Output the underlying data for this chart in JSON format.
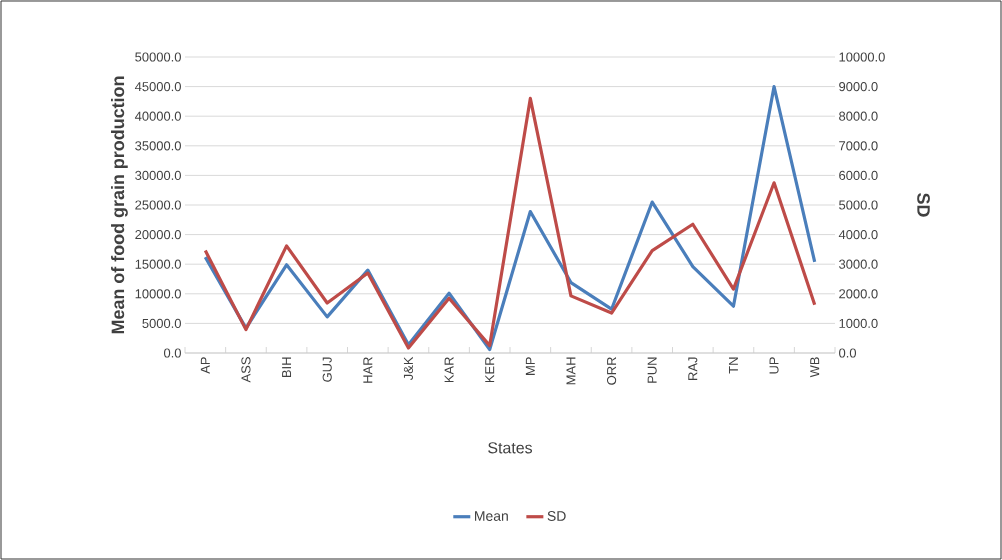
{
  "chart_data": {
    "type": "line",
    "xlabel": "States",
    "ylabel": "Mean of food grain production",
    "y2label": "SD",
    "categories": [
      "AP",
      "ASS",
      "BIH",
      "GUJ",
      "HAR",
      "J&K",
      "KAR",
      "KER",
      "MP",
      "MAH",
      "ORR",
      "PUN",
      "RAJ",
      "TN",
      "UP",
      "WB"
    ],
    "series": [
      {
        "name": "Mean",
        "color": "#4a7ebb",
        "values": [
          16200,
          4200,
          14900,
          6100,
          14000,
          1400,
          10100,
          600,
          23900,
          11900,
          7400,
          25500,
          14600,
          7900,
          45000,
          15400
        ]
      },
      {
        "name": "SD",
        "color": "#be4b48",
        "axis": "y2",
        "values": [
          3460,
          790,
          3620,
          1690,
          2700,
          170,
          1850,
          250,
          8600,
          1930,
          1350,
          3460,
          4350,
          2160,
          5750,
          1630
        ]
      }
    ],
    "ylim": [
      0,
      50000
    ],
    "yticks": [
      {
        "value": 0,
        "label": "0.0"
      },
      {
        "value": 5000,
        "label": "5000.0"
      },
      {
        "value": 10000,
        "label": "10000.0"
      },
      {
        "value": 15000,
        "label": "15000.0"
      },
      {
        "value": 20000,
        "label": "20000.0"
      },
      {
        "value": 25000,
        "label": "25000.0"
      },
      {
        "value": 30000,
        "label": "30000.0"
      },
      {
        "value": 35000,
        "label": "35000.0"
      },
      {
        "value": 40000,
        "label": "40000.0"
      },
      {
        "value": 45000,
        "label": "45000.0"
      },
      {
        "value": 50000,
        "label": "50000.0"
      }
    ],
    "y2lim": [
      0,
      10000
    ],
    "y2ticks": [
      {
        "value": 0,
        "label": "0.0"
      },
      {
        "value": 1000,
        "label": "1000.0"
      },
      {
        "value": 2000,
        "label": "2000.0"
      },
      {
        "value": 3000,
        "label": "3000.0"
      },
      {
        "value": 4000,
        "label": "4000.0"
      },
      {
        "value": 5000,
        "label": "5000.0"
      },
      {
        "value": 6000,
        "label": "6000.0"
      },
      {
        "value": 7000,
        "label": "7000.0"
      },
      {
        "value": 8000,
        "label": "8000.0"
      },
      {
        "value": 9000,
        "label": "9000.0"
      },
      {
        "value": 10000,
        "label": "10000.0"
      }
    ],
    "grid": "y",
    "legend": "bottom",
    "marker": "none",
    "line_style": "solid"
  }
}
